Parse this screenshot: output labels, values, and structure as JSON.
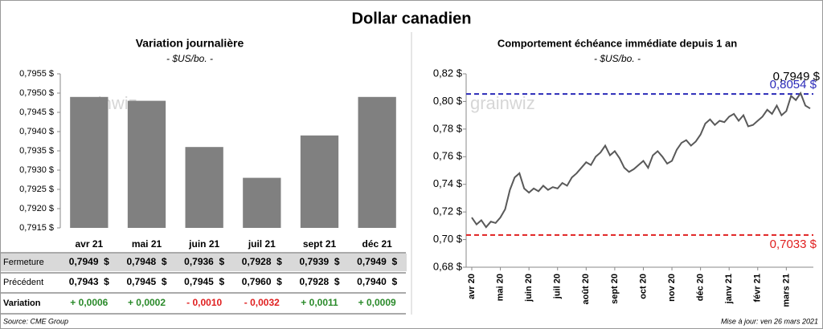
{
  "title": "Dollar canadien",
  "source": "Source: CME Group",
  "updated": "Mise à jour: ven 26 mars 2021",
  "watermark": "grainwiz",
  "chart_data": [
    {
      "type": "bar",
      "title": "Variation  journalière",
      "subtitle": "- $US/bo. -",
      "categories": [
        "avr 21",
        "mai 21",
        "juin 21",
        "juil 21",
        "sept 21",
        "déc 21"
      ],
      "values": [
        0.7949,
        0.7948,
        0.7936,
        0.7928,
        0.7939,
        0.7949
      ],
      "color": "#808080",
      "ylim": [
        0.7915,
        0.7955
      ],
      "yticks": [
        {
          "value": 0.7915,
          "label": "0,7915 $"
        },
        {
          "value": 0.792,
          "label": "0,7920 $"
        },
        {
          "value": 0.7925,
          "label": "0,7925 $"
        },
        {
          "value": 0.793,
          "label": "0,7930 $"
        },
        {
          "value": 0.7935,
          "label": "0,7935 $"
        },
        {
          "value": 0.794,
          "label": "0,7940 $"
        },
        {
          "value": 0.7945,
          "label": "0,7945 $"
        },
        {
          "value": 0.795,
          "label": "0,7950 $"
        },
        {
          "value": 0.7955,
          "label": "0,7955 $"
        }
      ]
    },
    {
      "type": "line",
      "title": "Comportement échéance immédiate depuis 1 an",
      "subtitle": "- $US/bo. -",
      "series": [
        {
          "color": "#595959",
          "values": [
            0.716,
            0.711,
            0.714,
            0.709,
            0.713,
            0.712,
            0.716,
            0.722,
            0.736,
            0.745,
            0.748,
            0.737,
            0.734,
            0.737,
            0.735,
            0.739,
            0.736,
            0.738,
            0.737,
            0.741,
            0.739,
            0.745,
            0.748,
            0.752,
            0.756,
            0.754,
            0.76,
            0.763,
            0.768,
            0.761,
            0.764,
            0.759,
            0.752,
            0.749,
            0.751,
            0.754,
            0.757,
            0.752,
            0.761,
            0.764,
            0.76,
            0.755,
            0.757,
            0.765,
            0.77,
            0.772,
            0.768,
            0.771,
            0.776,
            0.784,
            0.787,
            0.783,
            0.786,
            0.785,
            0.789,
            0.791,
            0.786,
            0.79,
            0.782,
            0.783,
            0.786,
            0.789,
            0.794,
            0.791,
            0.797,
            0.79,
            0.793,
            0.804,
            0.801,
            0.806,
            0.797,
            0.7949
          ]
        }
      ],
      "xlim": [
        0,
        71
      ],
      "xticks": [
        {
          "value": 0,
          "label": "avr 20"
        },
        {
          "value": 6,
          "label": "mai 20"
        },
        {
          "value": 12,
          "label": "juin 20"
        },
        {
          "value": 18,
          "label": "juil 20"
        },
        {
          "value": 24,
          "label": "août 20"
        },
        {
          "value": 30,
          "label": "sept 20"
        },
        {
          "value": 36,
          "label": "oct 20"
        },
        {
          "value": 42,
          "label": "nov 20"
        },
        {
          "value": 48,
          "label": "déc 20"
        },
        {
          "value": 54,
          "label": "janv 21"
        },
        {
          "value": 60,
          "label": "févr 21"
        },
        {
          "value": 66,
          "label": "mars 21"
        }
      ],
      "ylim": [
        0.68,
        0.82
      ],
      "yticks": [
        {
          "value": 0.68,
          "label": "0,68 $"
        },
        {
          "value": 0.7,
          "label": "0,70 $"
        },
        {
          "value": 0.72,
          "label": "0,72 $"
        },
        {
          "value": 0.74,
          "label": "0,74 $"
        },
        {
          "value": 0.76,
          "label": "0,76 $"
        },
        {
          "value": 0.78,
          "label": "0,78 $"
        },
        {
          "value": 0.8,
          "label": "0,80 $"
        },
        {
          "value": 0.82,
          "label": "0,82 $"
        }
      ],
      "reference_lines": [
        {
          "value": 0.8054,
          "label": "0,8054 $",
          "color": "#2a2ab8"
        },
        {
          "value": 0.7033,
          "label": "0,7033 $",
          "color": "#e02020"
        }
      ],
      "annotations": [
        {
          "value": 0.7949,
          "label": "0,7949 $"
        }
      ]
    }
  ],
  "table": {
    "rows": [
      {
        "label": "Fermeture",
        "cells": [
          "0,7949  $",
          "0,7948  $",
          "0,7936  $",
          "0,7928  $",
          "0,7939  $",
          "0,7949  $"
        ]
      },
      {
        "label": "Précédent",
        "cells": [
          "0,7943  $",
          "0,7945  $",
          "0,7945  $",
          "0,7960  $",
          "0,7928  $",
          "0,7940  $"
        ]
      },
      {
        "label": "Variation",
        "cells": [
          "+ 0,0006",
          "+ 0,0002",
          "- 0,0010",
          "- 0,0032",
          "+ 0,0011",
          "+ 0,0009"
        ]
      }
    ]
  }
}
